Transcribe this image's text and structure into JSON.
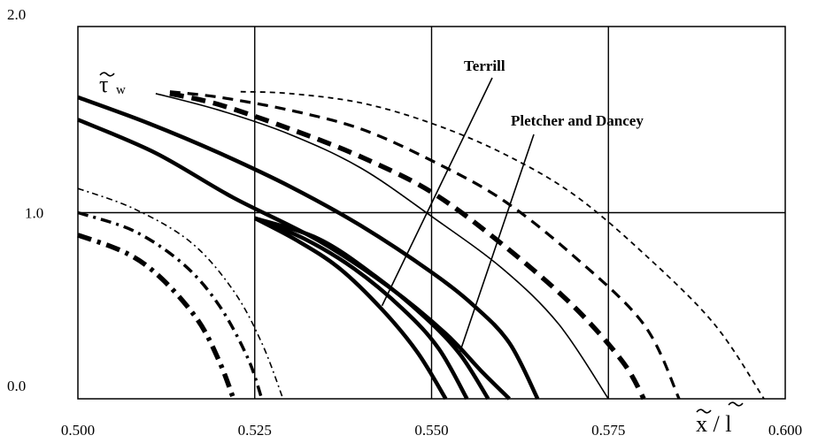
{
  "chart_data": {
    "type": "line",
    "title": "",
    "xlabel": "x̃ / l̃",
    "ylabel": "τ̃w",
    "xlim": [
      0.5,
      0.6
    ],
    "ylim": [
      0.0,
      2.0
    ],
    "grid": true,
    "x_ticks": [
      {
        "value": 0.5,
        "label": "0.500"
      },
      {
        "value": 0.525,
        "label": "0.525"
      },
      {
        "value": 0.55,
        "label": "0.550"
      },
      {
        "value": 0.575,
        "label": "0.575"
      },
      {
        "value": 0.6,
        "label": "0.600"
      }
    ],
    "y_ticks": [
      {
        "value": 0.0,
        "label": "0.0"
      },
      {
        "value": 1.0,
        "label": "1.0"
      },
      {
        "value": 2.0,
        "label": "2.0"
      }
    ],
    "annotations": [
      {
        "text": "Terrill",
        "points_to": {
          "x": 0.543,
          "y": 0.5
        }
      },
      {
        "text": "Pletcher and Dancey",
        "points_to": {
          "x": 0.554,
          "y": 0.25
        }
      }
    ],
    "series": [
      {
        "style": "solid-thick",
        "points": [
          [
            0.5,
            1.62
          ],
          [
            0.51,
            1.48
          ],
          [
            0.52,
            1.32
          ],
          [
            0.53,
            1.14
          ],
          [
            0.54,
            0.93
          ],
          [
            0.55,
            0.68
          ],
          [
            0.556,
            0.5
          ],
          [
            0.561,
            0.3
          ],
          [
            0.565,
            0.0
          ]
        ]
      },
      {
        "style": "solid-thick",
        "points": [
          [
            0.5,
            1.5
          ],
          [
            0.511,
            1.32
          ],
          [
            0.522,
            1.08
          ],
          [
            0.534,
            0.85
          ],
          [
            0.544,
            0.6
          ],
          [
            0.552,
            0.35
          ],
          [
            0.557,
            0.15
          ],
          [
            0.561,
            0.0
          ]
        ]
      },
      {
        "style": "solid-thick",
        "points": [
          [
            0.525,
            0.97
          ],
          [
            0.534,
            0.86
          ],
          [
            0.542,
            0.66
          ],
          [
            0.549,
            0.44
          ],
          [
            0.554,
            0.24
          ],
          [
            0.558,
            0.0
          ]
        ]
      },
      {
        "style": "solid-thick",
        "points": [
          [
            0.525,
            0.97
          ],
          [
            0.532,
            0.86
          ],
          [
            0.539,
            0.7
          ],
          [
            0.546,
            0.48
          ],
          [
            0.551,
            0.27
          ],
          [
            0.555,
            0.0
          ]
        ]
      },
      {
        "style": "solid-thick",
        "points": [
          [
            0.525,
            0.97
          ],
          [
            0.531,
            0.85
          ],
          [
            0.537,
            0.7
          ],
          [
            0.543,
            0.48
          ],
          [
            0.548,
            0.25
          ],
          [
            0.552,
            0.0
          ]
        ]
      },
      {
        "style": "solid-thin",
        "points": [
          [
            0.511,
            1.64
          ],
          [
            0.52,
            1.55
          ],
          [
            0.53,
            1.42
          ],
          [
            0.54,
            1.24
          ],
          [
            0.55,
            0.98
          ],
          [
            0.56,
            0.7
          ],
          [
            0.568,
            0.4
          ],
          [
            0.575,
            0.0
          ]
        ]
      },
      {
        "style": "dash-thick",
        "points": [
          [
            0.513,
            1.64
          ],
          [
            0.52,
            1.58
          ],
          [
            0.53,
            1.45
          ],
          [
            0.54,
            1.3
          ],
          [
            0.55,
            1.11
          ],
          [
            0.56,
            0.83
          ],
          [
            0.57,
            0.5
          ],
          [
            0.577,
            0.2
          ],
          [
            0.58,
            0.0
          ]
        ]
      },
      {
        "style": "dash-medium",
        "points": [
          [
            0.513,
            1.65
          ],
          [
            0.52,
            1.62
          ],
          [
            0.53,
            1.55
          ],
          [
            0.54,
            1.45
          ],
          [
            0.55,
            1.28
          ],
          [
            0.56,
            1.07
          ],
          [
            0.57,
            0.77
          ],
          [
            0.58,
            0.4
          ],
          [
            0.585,
            0.0
          ]
        ]
      },
      {
        "style": "dash-thin",
        "points": [
          [
            0.523,
            1.65
          ],
          [
            0.53,
            1.64
          ],
          [
            0.54,
            1.59
          ],
          [
            0.55,
            1.48
          ],
          [
            0.56,
            1.32
          ],
          [
            0.57,
            1.1
          ],
          [
            0.58,
            0.78
          ],
          [
            0.59,
            0.4
          ],
          [
            0.597,
            0.0
          ]
        ]
      },
      {
        "style": "dashdot-thick",
        "points": [
          [
            0.5,
            0.88
          ],
          [
            0.507,
            0.78
          ],
          [
            0.512,
            0.64
          ],
          [
            0.517,
            0.42
          ],
          [
            0.52,
            0.2
          ],
          [
            0.522,
            0.0
          ]
        ]
      },
      {
        "style": "dashdot-medium",
        "points": [
          [
            0.5,
            1.0
          ],
          [
            0.508,
            0.9
          ],
          [
            0.515,
            0.72
          ],
          [
            0.52,
            0.5
          ],
          [
            0.524,
            0.22
          ],
          [
            0.526,
            0.0
          ]
        ]
      },
      {
        "style": "dashdot-thin",
        "points": [
          [
            0.5,
            1.13
          ],
          [
            0.508,
            1.02
          ],
          [
            0.516,
            0.84
          ],
          [
            0.522,
            0.58
          ],
          [
            0.526,
            0.3
          ],
          [
            0.529,
            0.0
          ]
        ]
      }
    ]
  }
}
